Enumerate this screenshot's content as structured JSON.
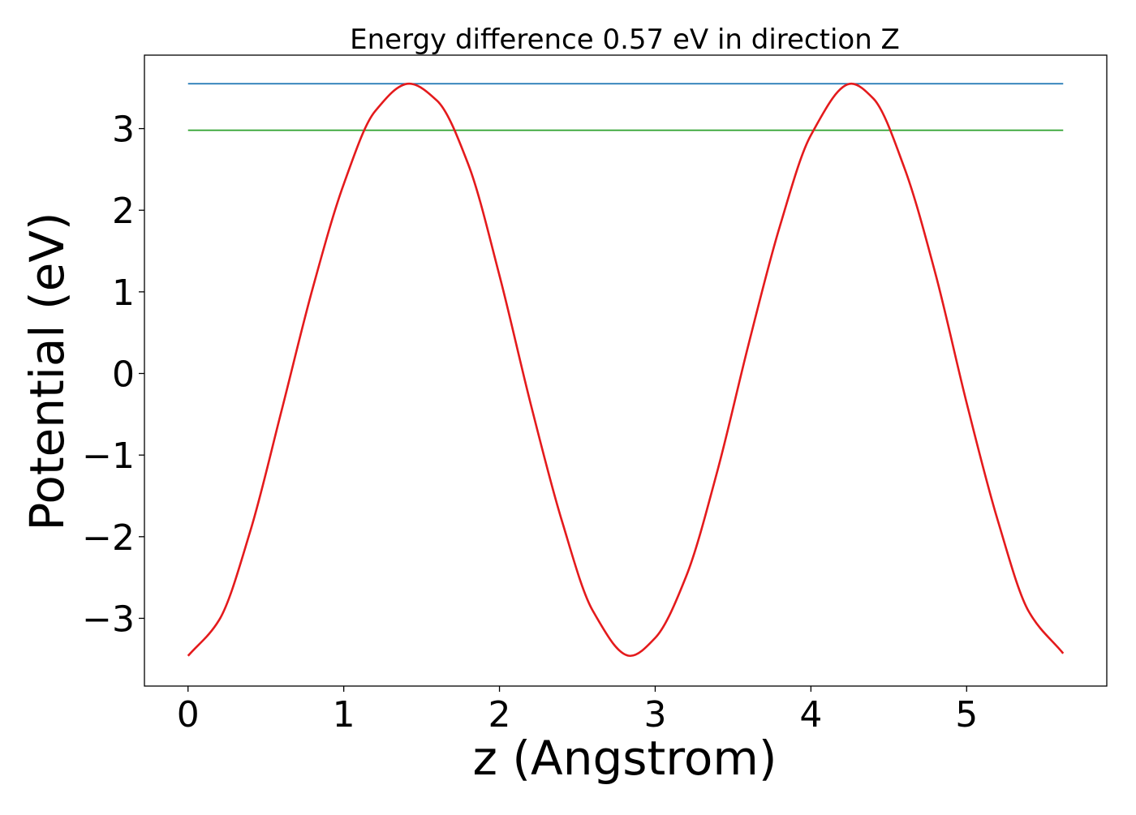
{
  "chart_data": {
    "type": "line",
    "title": "Energy difference 0.57 eV in direction Z",
    "xlabel": "z (Angstrom)",
    "ylabel": "Potential (eV)",
    "xlim": [
      -0.28,
      5.9
    ],
    "ylim": [
      -3.83,
      3.9
    ],
    "xticks": [
      0,
      1,
      2,
      3,
      4,
      5
    ],
    "yticks": [
      -3,
      -2,
      -1,
      0,
      1,
      2,
      3
    ],
    "grid": false,
    "legend": "none",
    "series": [
      {
        "color": "#e41a1c",
        "x": [
          0,
          0.2,
          0.4,
          0.6,
          0.8,
          1.0,
          1.2,
          1.42,
          1.6,
          1.8,
          2.0,
          2.2,
          2.4,
          2.6,
          2.84,
          3.0,
          3.2,
          3.4,
          3.6,
          3.8,
          4.0,
          4.26,
          4.4,
          4.6,
          4.8,
          5.0,
          5.2,
          5.4,
          5.62
        ],
        "y": [
          -3.46,
          -3.02,
          -1.93,
          -0.46,
          1.04,
          2.32,
          3.21,
          3.55,
          3.34,
          2.56,
          1.2,
          -0.37,
          -1.8,
          -2.91,
          -3.46,
          -3.24,
          -2.48,
          -1.19,
          0.36,
          1.8,
          2.92,
          3.55,
          3.37,
          2.52,
          1.22,
          -0.36,
          -1.8,
          -2.92,
          -3.43
        ]
      },
      {
        "color": "#1f77b4",
        "x": [
          0,
          5.62
        ],
        "y": [
          3.55,
          3.55
        ]
      },
      {
        "color": "#2ca02c",
        "x": [
          0,
          5.62
        ],
        "y": [
          2.98,
          2.98
        ]
      }
    ]
  }
}
